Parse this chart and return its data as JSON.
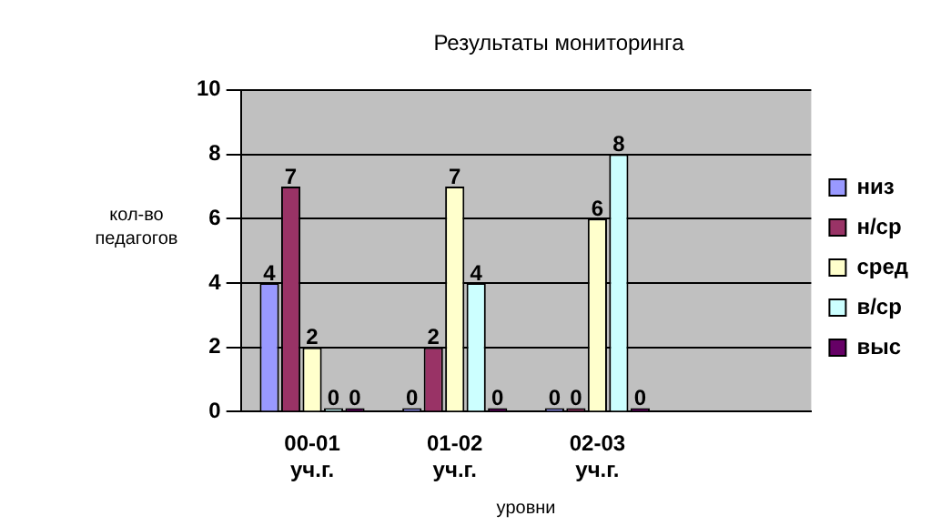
{
  "chart_data": {
    "type": "bar",
    "title": "Результаты мониторинга",
    "xlabel": "уровни",
    "ylabel": "кол-во педагогов",
    "categories": [
      "00-01 уч.г.",
      "01-02 уч.г.",
      "02-03 уч.г.",
      null
    ],
    "series": [
      {
        "name": "низ",
        "color": "#9999ff",
        "values": [
          4,
          0,
          0,
          null
        ]
      },
      {
        "name": "н/ср",
        "color": "#993366",
        "values": [
          7,
          2,
          0,
          null
        ]
      },
      {
        "name": "сред",
        "color": "#ffffcc",
        "values": [
          2,
          7,
          6,
          null
        ]
      },
      {
        "name": "в/ср",
        "color": "#ccffff",
        "values": [
          0,
          4,
          8,
          null
        ]
      },
      {
        "name": "выс",
        "color": "#660066",
        "values": [
          0,
          0,
          0,
          null
        ]
      }
    ],
    "ylim": [
      0,
      10
    ],
    "yticks": [
      0,
      2,
      4,
      6,
      8,
      10
    ],
    "grid": "y",
    "legend": "right",
    "data_labels": true
  }
}
